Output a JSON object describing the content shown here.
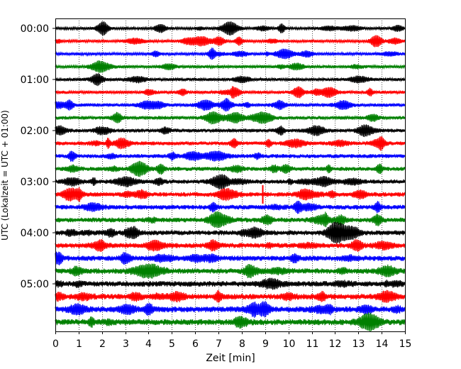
{
  "chart_data": {
    "type": "line",
    "subtype": "seismogram-helicorder",
    "xlabel": "Zeit  [min]",
    "ylabel": "UTC (Lokalzeit = UTC + 01:00)",
    "xlim": [
      0,
      15
    ],
    "x_ticks": [
      "0",
      "1",
      "2",
      "3",
      "4",
      "5",
      "6",
      "7",
      "8",
      "9",
      "10",
      "11",
      "12",
      "13",
      "14",
      "15"
    ],
    "y_tick_labels": [
      "00:00",
      "01:00",
      "02:00",
      "03:00",
      "04:00",
      "05:00"
    ],
    "grid": "vertical dotted at each minute",
    "trace_minutes": 15,
    "trace_count": 24,
    "trace_colors": [
      "#000000",
      "#ff0000",
      "#0000ff",
      "#008000"
    ],
    "spike": {
      "trace_index": 13,
      "minute": 8.9
    }
  }
}
